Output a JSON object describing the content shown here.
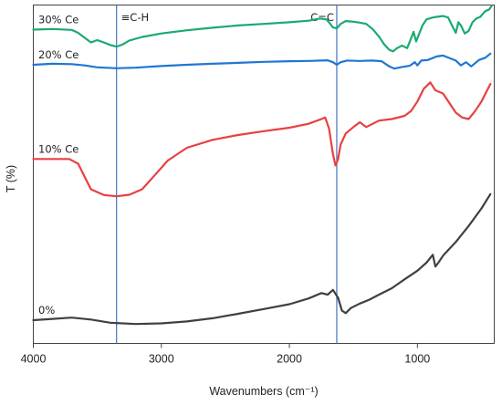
{
  "chart_data": {
    "type": "line",
    "title": "",
    "xlabel": "Wavenumbers (cm⁻¹)",
    "ylabel": "T (%)",
    "xlim": [
      4000,
      400
    ],
    "x_reversed": true,
    "ylim": [
      0,
      100
    ],
    "x_ticks": [
      4000,
      3000,
      2000,
      1000
    ],
    "y_ticks": [],
    "grid": false,
    "legend": "none",
    "annotations": [
      {
        "text": "≡C-H",
        "x": 3350,
        "color": "#4472c4"
      },
      {
        "text": "C=C",
        "x": 1630,
        "color": "#4472c4"
      }
    ],
    "series": [
      {
        "name": "0%",
        "color": "#404040",
        "points": [
          [
            4000,
            6.0
          ],
          [
            3850,
            6.4
          ],
          [
            3700,
            6.8
          ],
          [
            3550,
            6.2
          ],
          [
            3400,
            5.2
          ],
          [
            3200,
            4.8
          ],
          [
            3000,
            5.0
          ],
          [
            2800,
            5.6
          ],
          [
            2600,
            6.6
          ],
          [
            2400,
            8.0
          ],
          [
            2200,
            9.5
          ],
          [
            2000,
            11.0
          ],
          [
            1850,
            12.8
          ],
          [
            1750,
            14.5
          ],
          [
            1700,
            14.0
          ],
          [
            1660,
            15.5
          ],
          [
            1620,
            13.0
          ],
          [
            1590,
            9.0
          ],
          [
            1560,
            8.2
          ],
          [
            1520,
            9.8
          ],
          [
            1450,
            11.2
          ],
          [
            1380,
            12.3
          ],
          [
            1300,
            14.0
          ],
          [
            1200,
            16.0
          ],
          [
            1100,
            18.8
          ],
          [
            1000,
            21.5
          ],
          [
            930,
            24.0
          ],
          [
            880,
            26.5
          ],
          [
            860,
            22.8
          ],
          [
            840,
            23.8
          ],
          [
            800,
            26.2
          ],
          [
            700,
            30.5
          ],
          [
            600,
            35.5
          ],
          [
            500,
            41.0
          ],
          [
            430,
            45.5
          ]
        ]
      },
      {
        "name": "10% Ce",
        "color": "#e84040",
        "points": [
          [
            4000,
            56.5
          ],
          [
            3850,
            56.5
          ],
          [
            3720,
            56.5
          ],
          [
            3650,
            55.0
          ],
          [
            3600,
            51.0
          ],
          [
            3550,
            47.0
          ],
          [
            3450,
            45.2
          ],
          [
            3350,
            44.8
          ],
          [
            3250,
            45.3
          ],
          [
            3150,
            47.0
          ],
          [
            3050,
            51.5
          ],
          [
            2950,
            56.0
          ],
          [
            2800,
            60.0
          ],
          [
            2600,
            62.5
          ],
          [
            2400,
            64.0
          ],
          [
            2200,
            65.2
          ],
          [
            2000,
            66.3
          ],
          [
            1850,
            67.5
          ],
          [
            1750,
            69.0
          ],
          [
            1720,
            69.5
          ],
          [
            1690,
            66.0
          ],
          [
            1660,
            58.0
          ],
          [
            1640,
            54.5
          ],
          [
            1620,
            56.5
          ],
          [
            1600,
            61.0
          ],
          [
            1560,
            64.5
          ],
          [
            1500,
            66.5
          ],
          [
            1450,
            68.0
          ],
          [
            1400,
            66.5
          ],
          [
            1300,
            68.5
          ],
          [
            1200,
            69.0
          ],
          [
            1100,
            70.0
          ],
          [
            1050,
            71.5
          ],
          [
            1000,
            74.5
          ],
          [
            950,
            78.5
          ],
          [
            900,
            80.5
          ],
          [
            860,
            78.0
          ],
          [
            800,
            77.0
          ],
          [
            750,
            74.0
          ],
          [
            700,
            71.0
          ],
          [
            650,
            69.5
          ],
          [
            600,
            69.0
          ],
          [
            550,
            71.5
          ],
          [
            500,
            74.5
          ],
          [
            430,
            80.0
          ]
        ]
      },
      {
        "name": "20% Ce",
        "color": "#1f77d0",
        "points": [
          [
            4000,
            86.0
          ],
          [
            3850,
            86.3
          ],
          [
            3700,
            86.2
          ],
          [
            3600,
            85.8
          ],
          [
            3500,
            85.2
          ],
          [
            3350,
            84.9
          ],
          [
            3200,
            85.1
          ],
          [
            3000,
            85.6
          ],
          [
            2800,
            86.0
          ],
          [
            2600,
            86.3
          ],
          [
            2400,
            86.6
          ],
          [
            2200,
            86.9
          ],
          [
            2000,
            87.1
          ],
          [
            1850,
            87.2
          ],
          [
            1750,
            87.3
          ],
          [
            1700,
            87.4
          ],
          [
            1660,
            86.8
          ],
          [
            1630,
            86.0
          ],
          [
            1600,
            86.8
          ],
          [
            1550,
            87.3
          ],
          [
            1450,
            87.2
          ],
          [
            1350,
            87.3
          ],
          [
            1280,
            87.1
          ],
          [
            1220,
            85.5
          ],
          [
            1180,
            84.8
          ],
          [
            1120,
            85.3
          ],
          [
            1060,
            85.7
          ],
          [
            1020,
            86.8
          ],
          [
            1000,
            85.8
          ],
          [
            970,
            87.3
          ],
          [
            920,
            87.5
          ],
          [
            850,
            88.6
          ],
          [
            800,
            88.9
          ],
          [
            700,
            87.3
          ],
          [
            660,
            85.8
          ],
          [
            620,
            86.8
          ],
          [
            580,
            85.5
          ],
          [
            520,
            87.5
          ],
          [
            470,
            88.2
          ],
          [
            430,
            89.5
          ]
        ]
      },
      {
        "name": "30% Ce",
        "color": "#1aaa70",
        "points": [
          [
            4000,
            97.0
          ],
          [
            3850,
            97.2
          ],
          [
            3700,
            96.9
          ],
          [
            3650,
            96.0
          ],
          [
            3600,
            94.5
          ],
          [
            3550,
            93.0
          ],
          [
            3500,
            93.7
          ],
          [
            3450,
            93.0
          ],
          [
            3400,
            92.2
          ],
          [
            3350,
            91.7
          ],
          [
            3300,
            92.4
          ],
          [
            3250,
            93.6
          ],
          [
            3150,
            94.7
          ],
          [
            3000,
            95.8
          ],
          [
            2800,
            96.8
          ],
          [
            2600,
            97.6
          ],
          [
            2400,
            98.3
          ],
          [
            2200,
            98.8
          ],
          [
            2000,
            99.3
          ],
          [
            1850,
            99.8
          ],
          [
            1760,
            100.5
          ],
          [
            1710,
            100.2
          ],
          [
            1680,
            98.8
          ],
          [
            1660,
            97.7
          ],
          [
            1630,
            97.4
          ],
          [
            1600,
            98.8
          ],
          [
            1560,
            99.7
          ],
          [
            1500,
            99.5
          ],
          [
            1450,
            99.2
          ],
          [
            1400,
            98.8
          ],
          [
            1350,
            97.2
          ],
          [
            1300,
            94.8
          ],
          [
            1260,
            92.4
          ],
          [
            1220,
            90.7
          ],
          [
            1190,
            90.2
          ],
          [
            1160,
            91.2
          ],
          [
            1120,
            92.0
          ],
          [
            1080,
            91.2
          ],
          [
            1050,
            94.2
          ],
          [
            1030,
            96.3
          ],
          [
            1010,
            93.3
          ],
          [
            990,
            95.3
          ],
          [
            960,
            98.3
          ],
          [
            930,
            100.2
          ],
          [
            880,
            100.8
          ],
          [
            850,
            101.0
          ],
          [
            800,
            101.3
          ],
          [
            760,
            100.8
          ],
          [
            730,
            98.3
          ],
          [
            700,
            96.0
          ],
          [
            680,
            99.3
          ],
          [
            660,
            98.3
          ],
          [
            630,
            95.8
          ],
          [
            600,
            96.6
          ],
          [
            570,
            99.3
          ],
          [
            540,
            100.5
          ],
          [
            510,
            101.0
          ],
          [
            470,
            102.8
          ],
          [
            440,
            103.3
          ],
          [
            420,
            104.5
          ]
        ]
      }
    ]
  }
}
